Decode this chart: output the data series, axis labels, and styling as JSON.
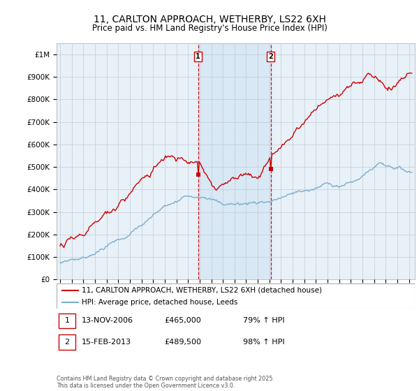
{
  "title": "11, CARLTON APPROACH, WETHERBY, LS22 6XH",
  "subtitle": "Price paid vs. HM Land Registry's House Price Index (HPI)",
  "title_fontsize": 10,
  "subtitle_fontsize": 8.5,
  "legend_line1": "11, CARLTON APPROACH, WETHERBY, LS22 6XH (detached house)",
  "legend_line2": "HPI: Average price, detached house, Leeds",
  "table_entries": [
    {
      "num": 1,
      "date": "13-NOV-2006",
      "price": "£465,000",
      "hpi": "79% ↑ HPI"
    },
    {
      "num": 2,
      "date": "15-FEB-2013",
      "price": "£489,500",
      "hpi": "98% ↑ HPI"
    }
  ],
  "footnote": "Contains HM Land Registry data © Crown copyright and database right 2025.\nThis data is licensed under the Open Government Licence v3.0.",
  "ylim": [
    0,
    1050000
  ],
  "yticks": [
    0,
    100000,
    200000,
    300000,
    400000,
    500000,
    600000,
    700000,
    800000,
    900000,
    1000000
  ],
  "ytick_labels": [
    "£0",
    "£100K",
    "£200K",
    "£300K",
    "£400K",
    "£500K",
    "£600K",
    "£700K",
    "£800K",
    "£900K",
    "£1M"
  ],
  "property_color": "#cc0000",
  "hpi_color": "#7aadce",
  "vline_color": "#cc0000",
  "shade_color": "#d8e8f5",
  "background_color": "#e8f0f8",
  "grid_color": "#c8d0d8",
  "transaction1_x": 2006.87,
  "transaction2_x": 2013.12,
  "transaction1_y": 465000,
  "transaction2_y": 489500,
  "xmin": 1995,
  "xmax": 2025
}
